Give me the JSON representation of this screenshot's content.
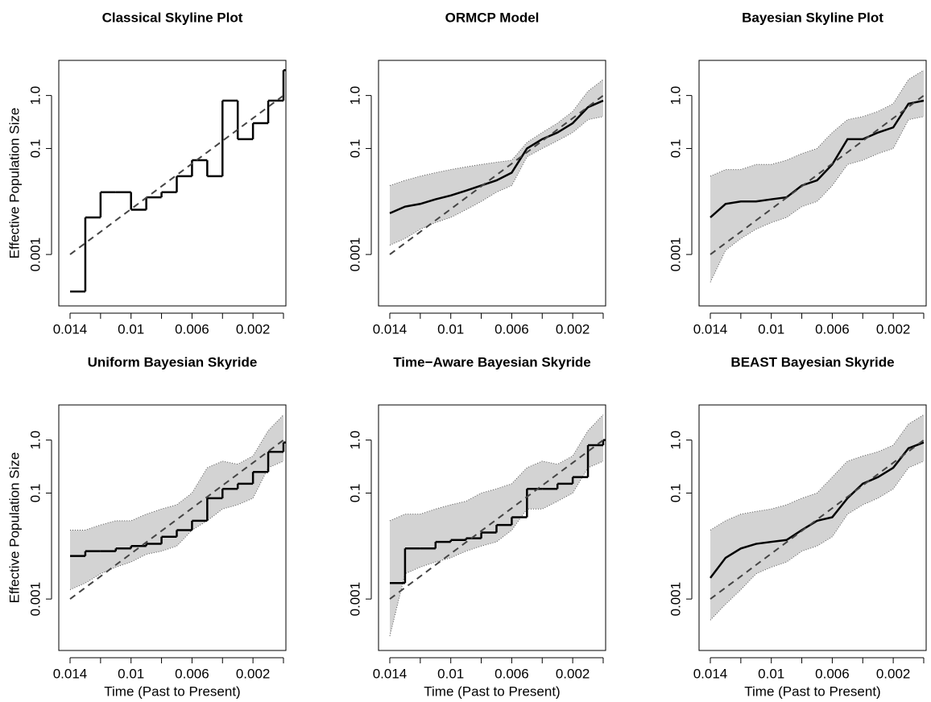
{
  "chart_data": [
    {
      "type": "line",
      "title": "Classical Skyline Plot",
      "ylabel": "Effective Population Size",
      "log_y": true,
      "x": [
        0.014,
        0.013,
        0.012,
        0.011,
        0.01,
        0.009,
        0.008,
        0.007,
        0.006,
        0.005,
        0.004,
        0.003,
        0.002,
        0.001,
        0.0
      ],
      "series": [
        {
          "color": "#000000",
          "step": true,
          "values": [
            0.0002,
            0.005,
            0.015,
            0.015,
            0.007,
            0.012,
            0.015,
            0.03,
            0.06,
            0.03,
            0.8,
            0.15,
            0.3,
            0.8,
            3.0
          ]
        },
        {
          "color": "#444444",
          "dashed": true,
          "values": [
            0.001,
            0.00164,
            0.00268,
            0.0044,
            0.0072,
            0.0118,
            0.0193,
            0.0316,
            0.0518,
            0.0849,
            0.139,
            0.228,
            0.373,
            0.611,
            1.0
          ]
        }
      ],
      "xlim": [
        0.01474,
        -0.00016
      ],
      "ylim": [
        0.000107,
        4.6
      ],
      "xticks": [
        0.014,
        0.01,
        0.006,
        0.002
      ],
      "xminor_ticks": [
        0.012,
        0.008,
        0.004,
        0.0
      ],
      "yticks": [
        0.001,
        0.1,
        {
          "value": 1,
          "label": "1.0"
        }
      ]
    },
    {
      "type": "line",
      "title": "ORMCP Model",
      "log_y": true,
      "x": [
        0.014,
        0.013,
        0.012,
        0.011,
        0.01,
        0.009,
        0.008,
        0.007,
        0.006,
        0.005,
        0.004,
        0.003,
        0.002,
        0.001,
        0.0
      ],
      "band": {
        "color": "#d3d3d3",
        "upper": [
          0.02,
          0.025,
          0.03,
          0.035,
          0.04,
          0.045,
          0.05,
          0.055,
          0.06,
          0.13,
          0.2,
          0.3,
          0.5,
          1.2,
          2.0
        ],
        "lower": [
          0.0015,
          0.002,
          0.003,
          0.004,
          0.005,
          0.007,
          0.01,
          0.015,
          0.02,
          0.07,
          0.1,
          0.14,
          0.2,
          0.35,
          0.4
        ]
      },
      "series": [
        {
          "color": "#000000",
          "values": [
            0.006,
            0.008,
            0.009,
            0.011,
            0.013,
            0.016,
            0.02,
            0.025,
            0.035,
            0.1,
            0.15,
            0.2,
            0.3,
            0.6,
            0.8
          ]
        },
        {
          "color": "#444444",
          "dashed": true,
          "values": [
            0.001,
            0.00164,
            0.00268,
            0.0044,
            0.0072,
            0.0118,
            0.0193,
            0.0316,
            0.0518,
            0.0849,
            0.139,
            0.228,
            0.373,
            0.611,
            1.0
          ]
        }
      ],
      "xlim": [
        0.01474,
        -0.00016
      ],
      "ylim": [
        0.000107,
        4.6
      ],
      "xticks": [
        0.014,
        0.01,
        0.006,
        0.002
      ],
      "xminor_ticks": [
        0.012,
        0.008,
        0.004,
        0.0
      ],
      "yticks": [
        0.001,
        0.1,
        {
          "value": 1,
          "label": "1.0"
        }
      ]
    },
    {
      "type": "line",
      "title": "Bayesian Skyline Plot",
      "log_y": true,
      "x": [
        0.014,
        0.013,
        0.012,
        0.011,
        0.01,
        0.009,
        0.008,
        0.007,
        0.006,
        0.005,
        0.004,
        0.003,
        0.002,
        0.001,
        0.0
      ],
      "band": {
        "color": "#d3d3d3",
        "upper": [
          0.03,
          0.04,
          0.04,
          0.05,
          0.05,
          0.06,
          0.08,
          0.1,
          0.2,
          0.35,
          0.4,
          0.5,
          0.7,
          2,
          3
        ],
        "lower": [
          0.0003,
          0.0012,
          0.002,
          0.003,
          0.004,
          0.005,
          0.008,
          0.01,
          0.02,
          0.05,
          0.06,
          0.08,
          0.1,
          0.35,
          0.4
        ]
      },
      "series": [
        {
          "color": "#000000",
          "values": [
            0.005,
            0.009,
            0.01,
            0.01,
            0.011,
            0.012,
            0.02,
            0.025,
            0.05,
            0.15,
            0.15,
            0.2,
            0.25,
            0.7,
            0.8
          ]
        },
        {
          "color": "#444444",
          "dashed": true,
          "values": [
            0.001,
            0.00164,
            0.00268,
            0.0044,
            0.0072,
            0.0118,
            0.0193,
            0.0316,
            0.0518,
            0.0849,
            0.139,
            0.228,
            0.373,
            0.611,
            1.0
          ]
        }
      ],
      "xlim": [
        0.01474,
        -0.00016
      ],
      "ylim": [
        0.000107,
        4.6
      ],
      "xticks": [
        0.014,
        0.01,
        0.006,
        0.002
      ],
      "xminor_ticks": [
        0.012,
        0.008,
        0.004,
        0.0
      ],
      "yticks": [
        0.001,
        0.1,
        {
          "value": 1,
          "label": "1.0"
        }
      ]
    },
    {
      "type": "line",
      "title": "Uniform Bayesian Skyride",
      "ylabel": "Effective Population Size",
      "xlabel": "Time (Past to Present)",
      "log_y": true,
      "x": [
        0.014,
        0.013,
        0.012,
        0.011,
        0.01,
        0.009,
        0.008,
        0.007,
        0.006,
        0.005,
        0.004,
        0.003,
        0.002,
        0.001,
        0.0
      ],
      "band": {
        "color": "#d3d3d3",
        "upper": [
          0.02,
          0.02,
          0.025,
          0.03,
          0.03,
          0.04,
          0.05,
          0.06,
          0.1,
          0.3,
          0.4,
          0.35,
          0.5,
          1.5,
          3
        ],
        "lower": [
          0.0015,
          0.002,
          0.003,
          0.004,
          0.005,
          0.007,
          0.008,
          0.01,
          0.02,
          0.03,
          0.05,
          0.06,
          0.08,
          0.3,
          0.4
        ]
      },
      "series": [
        {
          "color": "#000000",
          "step": true,
          "values": [
            0.0065,
            0.008,
            0.008,
            0.009,
            0.01,
            0.011,
            0.015,
            0.02,
            0.03,
            0.08,
            0.12,
            0.15,
            0.25,
            0.6,
            0.9
          ]
        },
        {
          "color": "#444444",
          "dashed": true,
          "values": [
            0.001,
            0.00164,
            0.00268,
            0.0044,
            0.0072,
            0.0118,
            0.0193,
            0.0316,
            0.0518,
            0.0849,
            0.139,
            0.228,
            0.373,
            0.611,
            1.0
          ]
        }
      ],
      "xlim": [
        0.01474,
        -0.00016
      ],
      "ylim": [
        0.000107,
        4.6
      ],
      "xticks": [
        0.014,
        0.01,
        0.006,
        0.002
      ],
      "xminor_ticks": [
        0.012,
        0.008,
        0.004,
        0.0
      ],
      "yticks": [
        0.001,
        0.1,
        {
          "value": 1,
          "label": "1.0"
        }
      ]
    },
    {
      "type": "line",
      "title": "Time−Aware Bayesian Skyride",
      "xlabel": "Time (Past to Present)",
      "log_y": true,
      "x": [
        0.014,
        0.013,
        0.012,
        0.011,
        0.01,
        0.009,
        0.008,
        0.007,
        0.006,
        0.005,
        0.004,
        0.003,
        0.002,
        0.001,
        0.0
      ],
      "band": {
        "color": "#d3d3d3",
        "upper": [
          0.03,
          0.04,
          0.04,
          0.05,
          0.06,
          0.07,
          0.1,
          0.12,
          0.15,
          0.3,
          0.4,
          0.35,
          0.5,
          1.5,
          3
        ],
        "lower": [
          0.0002,
          0.003,
          0.004,
          0.005,
          0.006,
          0.008,
          0.01,
          0.012,
          0.02,
          0.05,
          0.05,
          0.07,
          0.1,
          0.3,
          0.4
        ]
      },
      "series": [
        {
          "color": "#000000",
          "step": true,
          "values": [
            0.002,
            0.009,
            0.009,
            0.012,
            0.013,
            0.014,
            0.018,
            0.025,
            0.035,
            0.12,
            0.12,
            0.15,
            0.2,
            0.8,
            1.0
          ]
        },
        {
          "color": "#444444",
          "dashed": true,
          "values": [
            0.001,
            0.00164,
            0.00268,
            0.0044,
            0.0072,
            0.0118,
            0.0193,
            0.0316,
            0.0518,
            0.0849,
            0.139,
            0.228,
            0.373,
            0.611,
            1.0
          ]
        }
      ],
      "xlim": [
        0.01474,
        -0.00016
      ],
      "ylim": [
        0.000107,
        4.6
      ],
      "xticks": [
        0.014,
        0.01,
        0.006,
        0.002
      ],
      "xminor_ticks": [
        0.012,
        0.008,
        0.004,
        0.0
      ],
      "yticks": [
        0.001,
        0.1,
        {
          "value": 1,
          "label": "1.0"
        }
      ]
    },
    {
      "type": "line",
      "title": "BEAST Bayesian Skyride",
      "xlabel": "Time (Past to Present)",
      "log_y": true,
      "x": [
        0.014,
        0.013,
        0.012,
        0.011,
        0.01,
        0.009,
        0.008,
        0.007,
        0.006,
        0.005,
        0.004,
        0.003,
        0.002,
        0.001,
        0.0
      ],
      "band": {
        "color": "#d3d3d3",
        "upper": [
          0.02,
          0.03,
          0.04,
          0.045,
          0.05,
          0.06,
          0.08,
          0.1,
          0.2,
          0.4,
          0.5,
          0.6,
          0.8,
          2,
          3
        ],
        "lower": [
          0.0004,
          0.0008,
          0.0015,
          0.003,
          0.004,
          0.005,
          0.008,
          0.01,
          0.015,
          0.04,
          0.06,
          0.08,
          0.12,
          0.3,
          0.4
        ]
      },
      "series": [
        {
          "color": "#000000",
          "values": [
            0.0025,
            0.006,
            0.009,
            0.011,
            0.012,
            0.013,
            0.02,
            0.03,
            0.035,
            0.08,
            0.15,
            0.2,
            0.3,
            0.7,
            0.9
          ]
        },
        {
          "color": "#444444",
          "dashed": true,
          "values": [
            0.001,
            0.00164,
            0.00268,
            0.0044,
            0.0072,
            0.0118,
            0.0193,
            0.0316,
            0.0518,
            0.0849,
            0.139,
            0.228,
            0.373,
            0.611,
            1.0
          ]
        }
      ],
      "xlim": [
        0.01474,
        -0.00016
      ],
      "ylim": [
        0.000107,
        4.6
      ],
      "xticks": [
        0.014,
        0.01,
        0.006,
        0.002
      ],
      "xminor_ticks": [
        0.012,
        0.008,
        0.004,
        0.0
      ],
      "yticks": [
        0.001,
        0.1,
        {
          "value": 1,
          "label": "1.0"
        }
      ]
    }
  ]
}
